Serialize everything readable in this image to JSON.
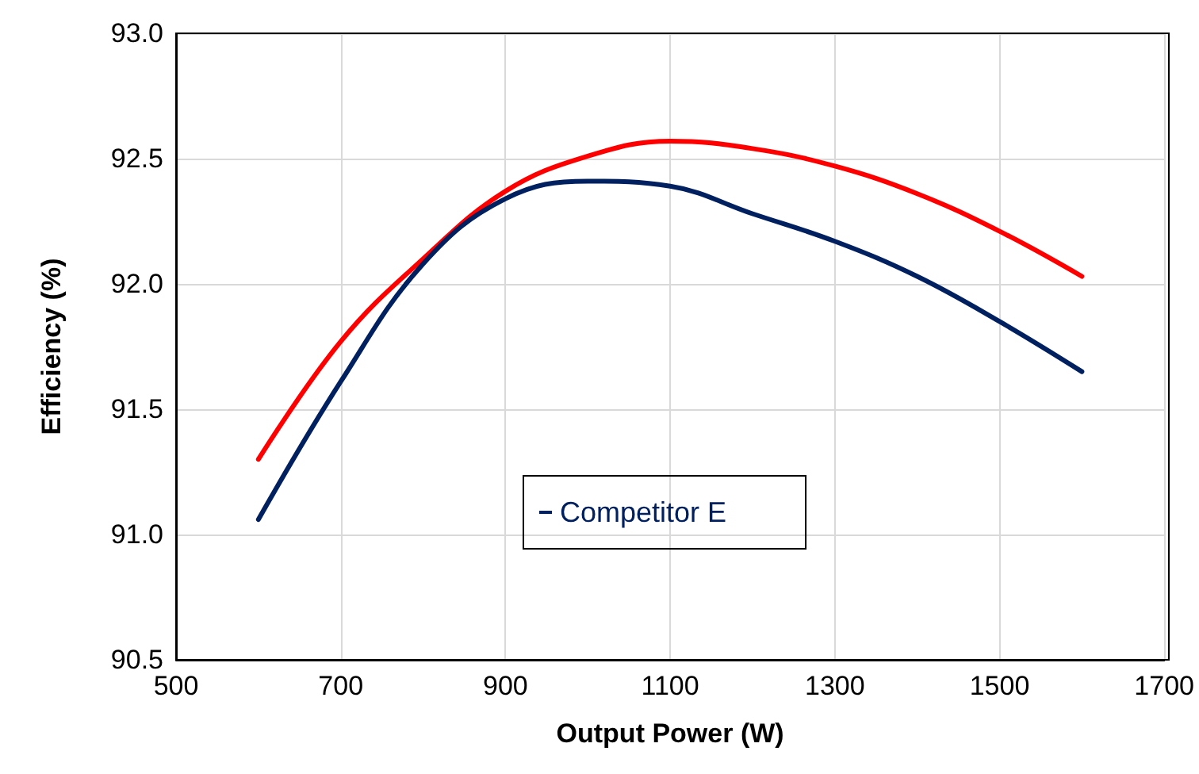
{
  "chart_data": {
    "type": "line",
    "xlabel": "Output Power (W)",
    "ylabel": "Efficiency (%)",
    "xlim": [
      500,
      1700
    ],
    "xticks": [
      500,
      700,
      900,
      1100,
      1300,
      1500,
      1700
    ],
    "ylim": [
      90.5,
      93.0
    ],
    "yticks": [
      {
        "value": 90.5,
        "label": "90.5"
      },
      {
        "value": 91.0,
        "label": "91.0"
      },
      {
        "value": 91.5,
        "label": "91.5"
      },
      {
        "value": 92.0,
        "label": "92.0"
      },
      {
        "value": 92.5,
        "label": "92.5"
      },
      {
        "value": 93.0,
        "label": "93.0"
      }
    ],
    "grid": true,
    "legend": "bottom",
    "marker": "none",
    "line_style": "solid",
    "series": [
      {
        "color": "#ff0000",
        "x": [
          600,
          700,
          800,
          900,
          1000,
          1100,
          1200,
          1300,
          1400,
          1500,
          1600
        ],
        "values": [
          91.3,
          91.77,
          92.1,
          92.37,
          92.51,
          92.57,
          92.54,
          92.47,
          92.36,
          92.21,
          92.03
        ]
      },
      {
        "name": "Competitor E",
        "color": "#002060",
        "x": [
          600,
          700,
          800,
          900,
          1000,
          1100,
          1200,
          1300,
          1400,
          1500,
          1600
        ],
        "values": [
          91.06,
          91.61,
          92.08,
          92.34,
          92.41,
          92.39,
          92.28,
          92.17,
          92.03,
          91.85,
          91.65
        ]
      }
    ]
  }
}
